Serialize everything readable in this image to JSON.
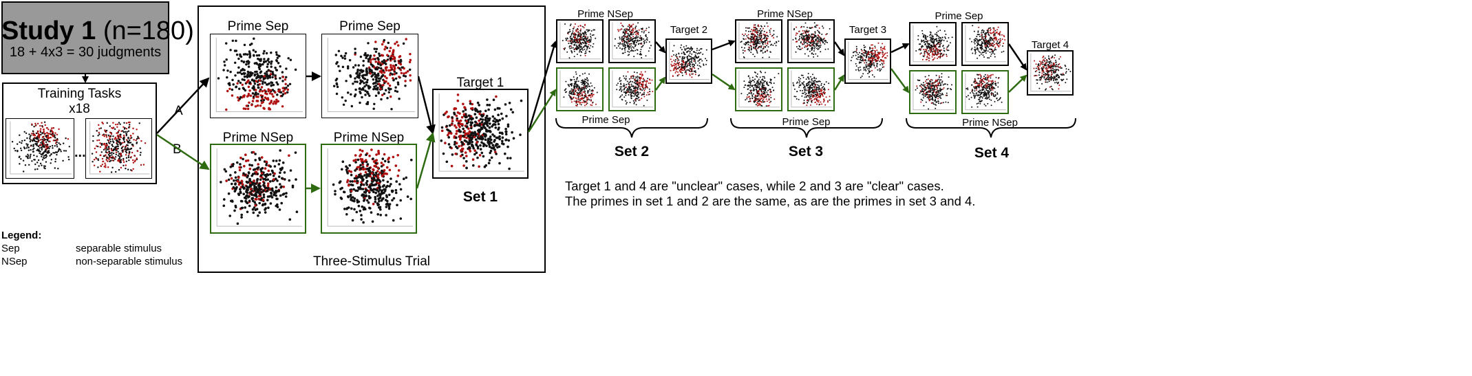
{
  "study": {
    "title_bold": "Study 1",
    "title_rest": "(n=180)",
    "judgments": "18 + 4x3 = 30 judgments"
  },
  "training": {
    "title": "Training Tasks",
    "count": "x18",
    "ellipsis": "..."
  },
  "paths": {
    "a": "A",
    "b": "B"
  },
  "set1": {
    "prime_sep_1": "Prime Sep",
    "prime_sep_2": "Prime Sep",
    "prime_nsep_1": "Prime NSep",
    "prime_nsep_2": "Prime NSep",
    "target": "Target 1",
    "label": "Set 1",
    "trial": "Three-Stimulus Trial"
  },
  "set2": {
    "top": "Prime NSep",
    "target": "Target 2",
    "bottom": "Prime Sep",
    "label": "Set 2"
  },
  "set3": {
    "top": "Prime NSep",
    "target": "Target 3",
    "bottom": "Prime Sep",
    "label": "Set 3"
  },
  "set4": {
    "top": "Prime Sep",
    "target": "Target 4",
    "bottom": "Prime NSep",
    "label": "Set 4"
  },
  "notes": {
    "line1": "Target 1 and 4 are \"unclear\" cases, while 2 and 3 are \"clear\" cases.",
    "line2": "The primes in set 1 and 2 are the same, as are the primes in set 3 and 4."
  },
  "legend": {
    "title": "Legend:",
    "items": [
      {
        "term": "Sep",
        "desc": "separable stimulus"
      },
      {
        "term": "NSep",
        "desc": "non-separable stimulus"
      }
    ]
  },
  "colors": {
    "study_bg": "#999999",
    "path_a": "#000000",
    "path_b": "#2e6b10",
    "dot_black": "#111111",
    "dot_red": "#b01010"
  }
}
